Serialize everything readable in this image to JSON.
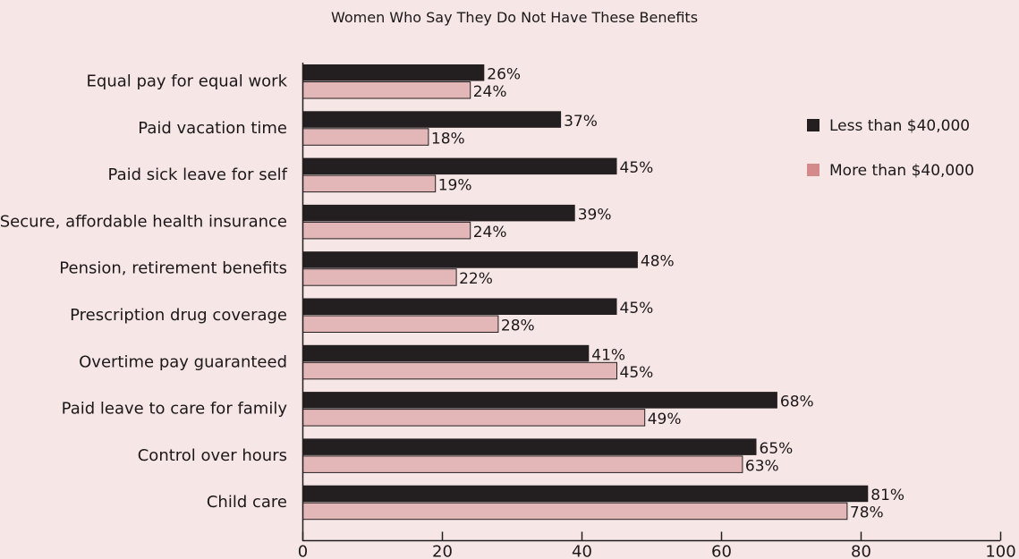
{
  "chart_data": {
    "type": "bar",
    "orientation": "horizontal",
    "title": "Women Who Say They Do Not Have These Benefits",
    "categories": [
      "Equal pay for equal work",
      "Paid vacation time",
      "Paid sick leave for self",
      "Secure, affordable health insurance",
      "Pension, retirement benefits",
      "Prescription drug coverage",
      "Overtime pay guaranteed",
      "Paid leave to care for family",
      "Control over hours",
      "Child care"
    ],
    "series": [
      {
        "name": "Less than $40,000",
        "color": "#231f20",
        "values": [
          26,
          37,
          45,
          39,
          48,
          45,
          41,
          68,
          65,
          81
        ],
        "labels": [
          "26%",
          "37%",
          "45%",
          "39%",
          "48%",
          "45%",
          "41%",
          "68%",
          "65%",
          "81%"
        ]
      },
      {
        "name": "More than $40,000",
        "color": "#e3b7b7",
        "values": [
          24,
          18,
          19,
          24,
          22,
          28,
          45,
          49,
          63,
          78
        ],
        "labels": [
          "24%",
          "18%",
          "19%",
          "24%",
          "22%",
          "28%",
          "45%",
          "49%",
          "63%",
          "78%"
        ]
      }
    ],
    "xlim": [
      0,
      100
    ],
    "xticks": [
      0,
      20,
      40,
      60,
      80,
      100
    ],
    "xtick_labels": [
      "0",
      "20",
      "40",
      "60",
      "80",
      "100"
    ],
    "legend_position": "right",
    "legend_swatch_colors": [
      "#231f20",
      "#d48a8a"
    ],
    "grid": false
  }
}
